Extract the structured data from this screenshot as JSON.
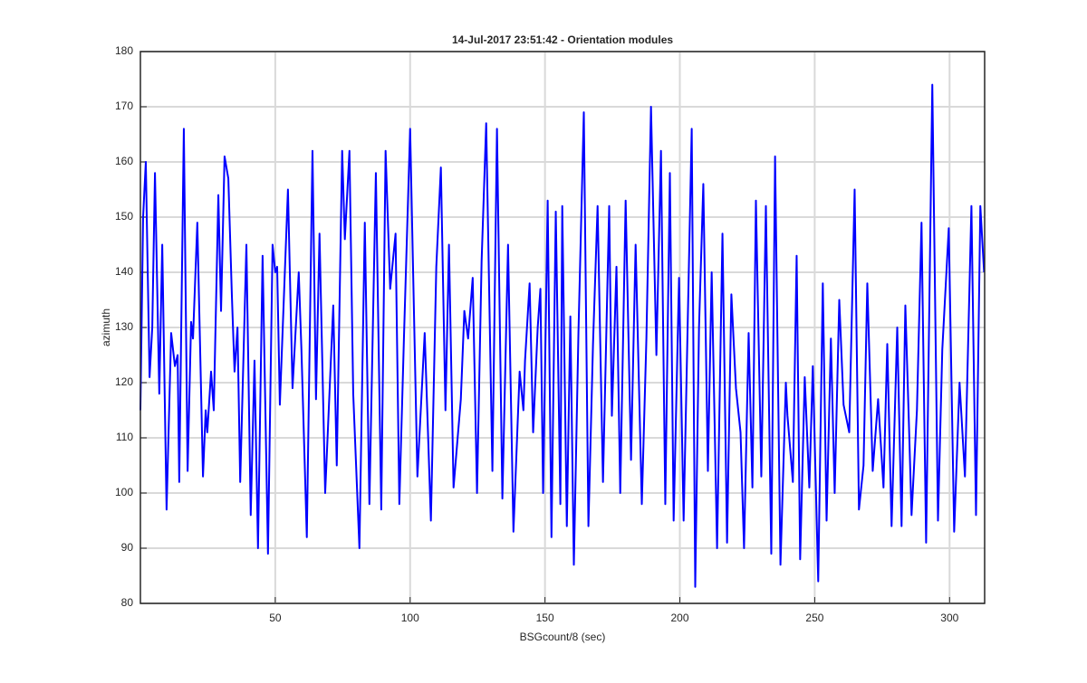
{
  "chart_data": {
    "type": "line",
    "title": "14-Jul-2017 23:51:42 - Orientation modules",
    "x_label": "BSGcount/8 (sec)",
    "y_label": "azimuth",
    "xlim": [
      0,
      313
    ],
    "ylim": [
      80,
      180
    ],
    "xticks": [
      50,
      100,
      150,
      200,
      250,
      300
    ],
    "yticks": [
      80,
      90,
      100,
      110,
      120,
      130,
      140,
      150,
      160,
      170,
      180
    ],
    "grid": true,
    "x": [
      0,
      1.0,
      2.0,
      3.4,
      4.4,
      5.4,
      7.0,
      8.1,
      9.7,
      11.4,
      12.8,
      13.8,
      14.4,
      16.1,
      17.5,
      18.8,
      19.5,
      21.1,
      23.2,
      24.2,
      24.8,
      26.2,
      27.2,
      28.9,
      29.9,
      31.2,
      32.6,
      33.9,
      34.9,
      36.0,
      37.0,
      39.3,
      40.9,
      42.3,
      43.6,
      45.3,
      47.3,
      49.0,
      50.0,
      50.7,
      51.7,
      54.7,
      56.4,
      58.7,
      59.7,
      61.7,
      63.8,
      65.1,
      66.4,
      68.5,
      71.5,
      72.8,
      74.8,
      75.8,
      77.5,
      78.9,
      81.2,
      83.2,
      84.9,
      87.3,
      89.3,
      90.9,
      92.6,
      94.6,
      96.0,
      97.7,
      100.0,
      102.7,
      105.4,
      107.7,
      109.7,
      111.4,
      113.1,
      114.4,
      116.1,
      118.8,
      120.1,
      121.5,
      123.2,
      124.8,
      126.5,
      128.2,
      130.5,
      132.2,
      134.2,
      136.3,
      138.3,
      140.6,
      142.0,
      142.6,
      144.3,
      145.6,
      147.3,
      148.3,
      149.3,
      151.0,
      152.4,
      154.0,
      155.7,
      156.4,
      158.1,
      159.4,
      160.7,
      162.4,
      164.4,
      166.1,
      167.8,
      169.5,
      171.5,
      173.8,
      174.8,
      176.5,
      177.9,
      179.9,
      181.9,
      183.6,
      185.9,
      187.6,
      189.3,
      191.3,
      193.0,
      194.6,
      196.3,
      197.7,
      199.7,
      201.4,
      204.4,
      205.7,
      207.1,
      208.7,
      210.4,
      211.8,
      213.8,
      215.8,
      217.5,
      219.1,
      220.8,
      222.5,
      223.8,
      225.5,
      226.9,
      228.2,
      230.2,
      231.9,
      233.9,
      235.3,
      237.3,
      239.3,
      239.9,
      241.9,
      243.3,
      244.6,
      246.3,
      248.0,
      249.3,
      251.3,
      253.0,
      254.4,
      256.0,
      257.4,
      259.1,
      260.7,
      262.8,
      264.8,
      266.4,
      268.1,
      269.5,
      271.5,
      273.5,
      275.5,
      276.9,
      278.5,
      280.6,
      282.2,
      283.6,
      284.9,
      285.9,
      287.9,
      289.6,
      291.3,
      293.6,
      295.7,
      297.3,
      299.7,
      301.7,
      303.7,
      305.7,
      308.1,
      309.8,
      311.4,
      312.8
    ],
    "series": [
      {
        "color": "#0000ff",
        "values": [
          115,
          150,
          160,
          121,
          130,
          158,
          118,
          145,
          97,
          129,
          123,
          125,
          102,
          166,
          104,
          131,
          128,
          149,
          103,
          115,
          111,
          122,
          115,
          154,
          133,
          161,
          157,
          136,
          122,
          130,
          102,
          145,
          96,
          124,
          90,
          143,
          89,
          145,
          140,
          141,
          116,
          155,
          119,
          140,
          126,
          92,
          162,
          117,
          147,
          100,
          134,
          105,
          162,
          146,
          162,
          118,
          90,
          149,
          98,
          158,
          97,
          162,
          137,
          147,
          98,
          128,
          166,
          103,
          129,
          95,
          141,
          159,
          115,
          145,
          101,
          117,
          133,
          128,
          139,
          100,
          142,
          167,
          104,
          166,
          99,
          145,
          93,
          122,
          115,
          124,
          138,
          111,
          130,
          137,
          100,
          153,
          92,
          151,
          98,
          152,
          94,
          132,
          87,
          129,
          169,
          94,
          127,
          152,
          102,
          152,
          114,
          141,
          100,
          153,
          106,
          145,
          98,
          128,
          170,
          125,
          162,
          98,
          158,
          95,
          139,
          95,
          166,
          83,
          130,
          156,
          104,
          140,
          90,
          147,
          91,
          136,
          119,
          111,
          90,
          129,
          101,
          153,
          103,
          152,
          89,
          161,
          87,
          120,
          114,
          102,
          143,
          88,
          121,
          101,
          123,
          84,
          138,
          95,
          128,
          100,
          135,
          116,
          111,
          155,
          97,
          105,
          138,
          104,
          117,
          101,
          127,
          94,
          130,
          94,
          134,
          113,
          96,
          115,
          149,
          91,
          174,
          95,
          126,
          148,
          93,
          120,
          103,
          152,
          96,
          152,
          140
        ]
      }
    ]
  }
}
